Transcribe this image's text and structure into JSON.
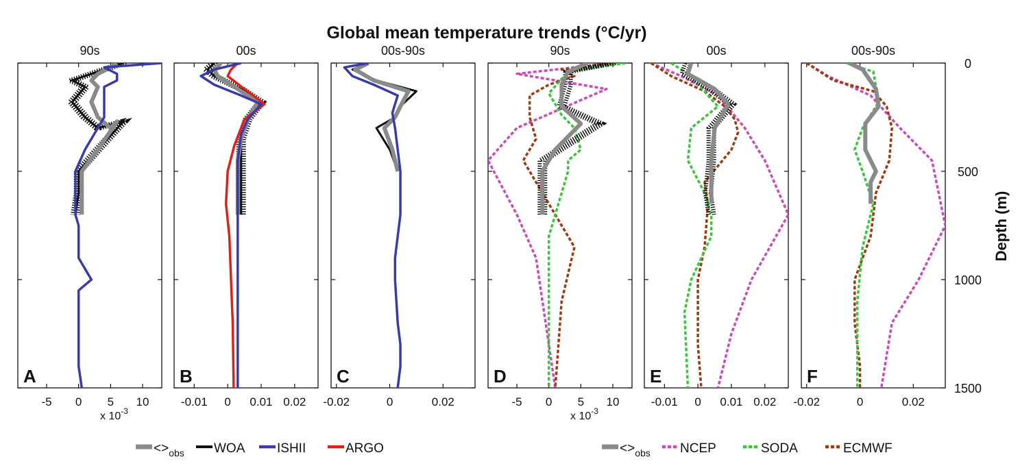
{
  "chart_data": {
    "type": "line",
    "title": "Global mean temperature trends (°C/yr)",
    "ylabel": "Depth (m)",
    "y_axis": {
      "ticks": [
        0,
        500,
        1000,
        1500
      ],
      "range": [
        0,
        1500
      ],
      "inverted": true
    },
    "sci_note": {
      "prefix": "x 10",
      "exponent": "-3"
    },
    "legends": [
      {
        "entries": [
          {
            "id": "obs",
            "label": "<>",
            "sub": "obs",
            "color": "#8a8a8a",
            "dash": false,
            "width": 6
          },
          {
            "id": "woa",
            "label": "WOA",
            "color": "#111111",
            "dash": false,
            "width": 3
          },
          {
            "id": "ishii",
            "label": "ISHII",
            "color": "#3a3aa8",
            "dash": false,
            "width": 3.5
          },
          {
            "id": "argo",
            "label": "ARGO",
            "color": "#e0201c",
            "dash": false,
            "width": 3.5
          }
        ]
      },
      {
        "entries": [
          {
            "id": "obs",
            "label": "<>",
            "sub": "obs",
            "color": "#8a8a8a",
            "dash": false,
            "width": 6
          },
          {
            "id": "ncep",
            "label": "NCEP",
            "color": "#c94bb4",
            "dash": true,
            "width": 3.5
          },
          {
            "id": "soda",
            "label": "SODA",
            "color": "#3cc43c",
            "dash": true,
            "width": 3.5
          },
          {
            "id": "ecmwf",
            "label": "ECMWF",
            "color": "#9a3c12",
            "dash": true,
            "width": 3.5
          }
        ]
      }
    ],
    "panels": [
      {
        "letter": "A",
        "title": "90s",
        "xlim": [
          -9.5,
          13
        ],
        "xticks": [
          -5,
          0,
          5,
          10
        ],
        "xtick_labels": [
          "-5",
          "0",
          "5",
          "10"
        ],
        "sci_note": true,
        "series": [
          {
            "name": "WOA",
            "color": "#111111",
            "width": 3,
            "dash": false,
            "band": true,
            "x": [
              7,
              5,
              2,
              -1,
              1,
              -1,
              1,
              3,
              7,
              3,
              0,
              0,
              -0.5
            ],
            "y": [
              0,
              20,
              50,
              80,
              110,
              180,
              250,
              300,
              270,
              400,
              500,
              600,
              700
            ]
          },
          {
            "name": "<>obs",
            "color": "#8a8a8a",
            "width": 6,
            "dash": false,
            "x": [
              6,
              5,
              3,
              2,
              3,
              2,
              3,
              5,
              6,
              3,
              0.5,
              0.5,
              0.5
            ],
            "y": [
              0,
              20,
              50,
              80,
              110,
              180,
              250,
              300,
              270,
              400,
              500,
              600,
              700
            ]
          },
          {
            "name": "ISHII",
            "color": "#3a3aa8",
            "width": 3.5,
            "dash": false,
            "x": [
              13,
              4,
              6,
              6,
              4,
              4,
              4,
              3,
              2,
              1,
              -0.5,
              -0.5,
              -0.5,
              -0.5,
              -0.5,
              0,
              0,
              2,
              0,
              0,
              0,
              0,
              0.5
            ],
            "y": [
              0,
              20,
              50,
              80,
              110,
              180,
              250,
              300,
              350,
              400,
              500,
              550,
              600,
              650,
              700,
              750,
              900,
              1000,
              1050,
              1200,
              1300,
              1400,
              1500
            ]
          }
        ]
      },
      {
        "letter": "B",
        "title": "00s",
        "xlim": [
          -0.016,
          0.027
        ],
        "xticks": [
          -0.01,
          0,
          0.01,
          0.02
        ],
        "xtick_labels": [
          "-0.01",
          "0",
          "0.01",
          "0.02"
        ],
        "sci_note": false,
        "series": [
          {
            "name": "WOA",
            "color": "#111111",
            "width": 3,
            "dash": false,
            "band": true,
            "x": [
              -0.004,
              -0.006,
              -0.004,
              0.004,
              0.01,
              0.006,
              0.004,
              0.004,
              0.004,
              0.004
            ],
            "y": [
              0,
              30,
              60,
              120,
              180,
              260,
              350,
              450,
              600,
              700
            ]
          },
          {
            "name": "<>obs",
            "color": "#8a8a8a",
            "width": 6,
            "dash": false,
            "x": [
              -0.002,
              -0.004,
              -0.003,
              0.003,
              0.009,
              0.006,
              0.004,
              0.003,
              0.003,
              0.003
            ],
            "y": [
              0,
              30,
              60,
              120,
              180,
              260,
              350,
              450,
              600,
              700
            ]
          },
          {
            "name": "ARGO",
            "color": "#e0201c",
            "width": 3.5,
            "dash": false,
            "x": [
              0.003,
              0.001,
              0,
              0.005,
              0.011,
              0.005,
              0.002,
              0,
              -0.0005,
              0.0005,
              0.001,
              0.0015,
              0.0018
            ],
            "y": [
              0,
              30,
              60,
              120,
              190,
              260,
              380,
              500,
              650,
              800,
              1000,
              1200,
              1500
            ]
          },
          {
            "name": "ISHII",
            "color": "#3a3aa8",
            "width": 3.5,
            "dash": false,
            "x": [
              0.004,
              -0.004,
              -0.008,
              -0.004,
              0.004,
              0.01,
              0.006,
              0.004,
              0.003,
              0.003,
              0.003,
              0.003,
              0.003,
              0.003,
              0.003
            ],
            "y": [
              0,
              30,
              60,
              100,
              150,
              190,
              260,
              330,
              450,
              600,
              800,
              1000,
              1200,
              1400,
              1500
            ]
          }
        ]
      },
      {
        "letter": "C",
        "title": "00s-90s",
        "xlim": [
          -0.022,
          0.032
        ],
        "xticks": [
          -0.02,
          0,
          0.02
        ],
        "xtick_labels": [
          "-0.02",
          "0",
          "0.02"
        ],
        "sci_note": false,
        "series": [
          {
            "name": "WOA",
            "color": "#111111",
            "width": 3,
            "dash": false,
            "x": [
              -0.008,
              -0.014,
              -0.005,
              0.01,
              0.004,
              0.002,
              -0.005,
              0,
              0.003
            ],
            "y": [
              0,
              30,
              80,
              130,
              200,
              250,
              300,
              400,
              500
            ]
          },
          {
            "name": "<>obs",
            "color": "#8a8a8a",
            "width": 6,
            "dash": false,
            "x": [
              -0.008,
              -0.013,
              -0.006,
              0.007,
              0.004,
              0.002,
              -0.002,
              0.001,
              0.003
            ],
            "y": [
              0,
              30,
              80,
              130,
              200,
              250,
              300,
              400,
              500
            ]
          },
          {
            "name": "ISHII",
            "color": "#3a3aa8",
            "width": 3.5,
            "dash": false,
            "x": [
              -0.008,
              -0.017,
              -0.014,
              -0.006,
              0.003,
              0.001,
              0.002,
              0.003,
              0.004,
              0.004,
              0.002,
              0.002,
              0.003,
              0.004,
              0.004,
              0.003
            ],
            "y": [
              0,
              20,
              60,
              100,
              150,
              230,
              300,
              400,
              500,
              700,
              900,
              1000,
              1200,
              1300,
              1400,
              1500
            ]
          }
        ]
      },
      {
        "letter": "D",
        "title": "90s",
        "xlim": [
          -9.5,
          13
        ],
        "xticks": [
          -5,
          0,
          5,
          10
        ],
        "xtick_labels": [
          "-5",
          "0",
          "5",
          "10"
        ],
        "sci_note": true,
        "series": [
          {
            "name": "NCEP",
            "color": "#c94bb4",
            "width": 3.5,
            "dash": true,
            "x": [
              10,
              -5,
              9,
              -5,
              -9.5,
              -5,
              -2,
              -1,
              0,
              1
            ],
            "y": [
              0,
              50,
              120,
              300,
              450,
              700,
              900,
              1100,
              1300,
              1500
            ]
          },
          {
            "name": "ECMWF",
            "color": "#9a3c12",
            "width": 3.5,
            "dash": true,
            "x": [
              10,
              2,
              4,
              0,
              -3,
              -3,
              -2,
              -4,
              -2,
              1,
              4,
              2,
              1.5,
              1
            ],
            "y": [
              0,
              30,
              60,
              100,
              150,
              250,
              350,
              450,
              550,
              700,
              850,
              1100,
              1300,
              1500
            ]
          },
          {
            "name": "SODA",
            "color": "#3cc43c",
            "width": 3.5,
            "dash": true,
            "x": [
              12,
              3,
              0,
              2,
              4,
              5,
              3,
              3,
              2,
              0,
              0,
              0,
              0
            ],
            "y": [
              0,
              40,
              140,
              240,
              300,
              400,
              450,
              500,
              600,
              800,
              1000,
              1300,
              1500
            ]
          },
          {
            "name": "WOA-band",
            "color": "#111111",
            "width": 3,
            "dash": false,
            "band": true,
            "band_only": true,
            "x": [
              10,
              3,
              3,
              2,
              8,
              -1,
              -1,
              -1
            ],
            "y": [
              0,
              40,
              100,
              200,
              280,
              450,
              550,
              700
            ]
          },
          {
            "name": "<>obs",
            "color": "#8a8a8a",
            "width": 6,
            "dash": false,
            "x": [
              6,
              3,
              2,
              2,
              5,
              1,
              -1,
              -1,
              -1
            ],
            "y": [
              0,
              40,
              100,
              200,
              280,
              400,
              500,
              600,
              700
            ]
          }
        ]
      },
      {
        "letter": "E",
        "title": "00s",
        "xlim": [
          -0.016,
          0.027
        ],
        "xticks": [
          -0.01,
          0,
          0.01,
          0.02
        ],
        "xtick_labels": [
          "-0.01",
          "0",
          "0.01",
          "0.02"
        ],
        "sci_note": false,
        "series": [
          {
            "name": "NCEP",
            "color": "#c94bb4",
            "width": 3.5,
            "dash": true,
            "x": [
              -0.014,
              -0.005,
              0.006,
              0.014,
              0.02,
              0.027,
              0.016,
              0.01,
              0.006
            ],
            "y": [
              0,
              60,
              150,
              300,
              450,
              700,
              1000,
              1250,
              1500
            ]
          },
          {
            "name": "ECMWF",
            "color": "#9a3c12",
            "width": 3.5,
            "dash": true,
            "x": [
              -0.014,
              -0.008,
              0.002,
              0.008,
              0.011,
              0.012,
              0.01,
              0.002,
              0.003,
              0.002,
              0,
              0,
              0.001
            ],
            "y": [
              0,
              60,
              130,
              200,
              260,
              320,
              400,
              550,
              650,
              850,
              1000,
              1300,
              1500
            ]
          },
          {
            "name": "SODA",
            "color": "#3cc43c",
            "width": 3.5,
            "dash": true,
            "x": [
              -0.008,
              -0.002,
              0.003,
              0.006,
              -0.002,
              -0.003,
              0.002,
              0.004,
              0.004,
              -0.002,
              -0.004,
              -0.003
            ],
            "y": [
              0,
              60,
              150,
              200,
              300,
              450,
              600,
              700,
              800,
              1000,
              1150,
              1500
            ]
          },
          {
            "name": "WOA-band",
            "color": "#111111",
            "width": 3,
            "dash": false,
            "band": true,
            "band_only": true,
            "x": [
              -0.003,
              -0.004,
              0.004,
              0.01,
              0.004,
              0.004,
              0.003,
              0.004
            ],
            "y": [
              0,
              50,
              120,
              190,
              300,
              450,
              600,
              700
            ]
          },
          {
            "name": "<>obs",
            "color": "#8a8a8a",
            "width": 6,
            "dash": false,
            "x": [
              -0.002,
              -0.003,
              0.005,
              0.009,
              0.005,
              0.004,
              0.004,
              0.004
            ],
            "y": [
              0,
              50,
              120,
              190,
              300,
              450,
              600,
              650
            ]
          }
        ]
      },
      {
        "letter": "F",
        "title": "00s-90s",
        "xlim": [
          -0.022,
          0.032
        ],
        "xticks": [
          -0.02,
          0,
          0.02
        ],
        "xtick_labels": [
          "-0.02",
          "0",
          "0.02"
        ],
        "sci_note": false,
        "series": [
          {
            "name": "NCEP",
            "color": "#c94bb4",
            "width": 3.5,
            "dash": true,
            "x": [
              -0.02,
              -0.012,
              0.004,
              0.015,
              0.027,
              0.032,
              0.022,
              0.012,
              0.008
            ],
            "y": [
              0,
              60,
              150,
              300,
              450,
              750,
              1000,
              1200,
              1500
            ]
          },
          {
            "name": "ECMWF",
            "color": "#9a3c12",
            "width": 3.5,
            "dash": true,
            "x": [
              -0.02,
              -0.01,
              0.005,
              0.01,
              0.012,
              0.011,
              0.006,
              0.004,
              -0.002,
              -0.002,
              0,
              0
            ],
            "y": [
              0,
              80,
              130,
              200,
              300,
              450,
              600,
              800,
              1000,
              1200,
              1400,
              1500
            ]
          },
          {
            "name": "SODA",
            "color": "#3cc43c",
            "width": 3.5,
            "dash": true,
            "x": [
              -0.005,
              0.005,
              0.007,
              0.001,
              -0.002,
              0.001,
              0.005,
              0.001,
              -0.001,
              -0.001,
              -0.001
            ],
            "y": [
              0,
              40,
              180,
              300,
              400,
              500,
              650,
              850,
              1100,
              1300,
              1500
            ]
          },
          {
            "name": "<>obs",
            "color": "#8a8a8a",
            "width": 6,
            "dash": false,
            "x": [
              -0.004,
              0.001,
              0.006,
              0.007,
              0.002,
              0.002,
              0.006,
              0.004,
              0.004
            ],
            "y": [
              0,
              30,
              120,
              200,
              280,
              400,
              500,
              550,
              650
            ]
          }
        ]
      }
    ]
  }
}
